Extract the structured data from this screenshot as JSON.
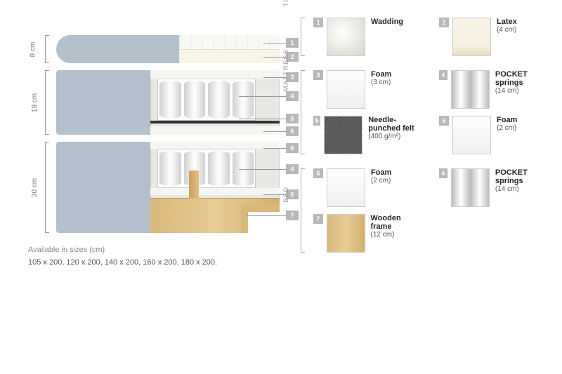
{
  "footer": {
    "title": "Available in sizes (cm)",
    "sizes": "105 x 200, 120 x 200, 140 x 200, 160 x 200, 180 x 200."
  },
  "sections": {
    "top": {
      "height_cm": "8 cm",
      "pointers": [
        "1",
        "2"
      ]
    },
    "mid": {
      "height_cm": "19 cm",
      "pointers": [
        "3",
        "4",
        "5",
        "6"
      ]
    },
    "base": {
      "height_cm": "30 cm",
      "pointers": [
        "6",
        "4",
        "6",
        "7"
      ]
    }
  },
  "legend": {
    "groups": [
      {
        "label": "TOP MATTRESS",
        "rows": [
          [
            {
              "num": "1",
              "name": "Wadding",
              "detail": "",
              "swatch": "sw-wadding"
            },
            {
              "num": "2",
              "name": "Latex",
              "detail": "(4 cm)",
              "swatch": "sw-latex"
            }
          ]
        ]
      },
      {
        "label": "MATTRESS",
        "rows": [
          [
            {
              "num": "3",
              "name": "Foam",
              "detail": "(3 cm)",
              "swatch": "sw-foam"
            },
            {
              "num": "4",
              "name": "POCKET springs",
              "detail": "(14 cm)",
              "swatch": "sw-pocket"
            }
          ],
          [
            {
              "num": "5",
              "name": "Needle-punched felt",
              "detail": "(400 g/m²)",
              "swatch": "sw-felt"
            },
            {
              "num": "6",
              "name": "Foam",
              "detail": "(2 cm)",
              "swatch": "sw-foam"
            }
          ]
        ]
      },
      {
        "label": "BED",
        "rows": [
          [
            {
              "num": "6",
              "name": "Foam",
              "detail": "(2 cm)",
              "swatch": "sw-foam"
            },
            {
              "num": "4",
              "name": "POCKET springs",
              "detail": "(14 cm)",
              "swatch": "sw-pocket"
            }
          ],
          [
            {
              "num": "7",
              "name": "Wooden frame",
              "detail": "(12 cm)",
              "swatch": "sw-wood"
            }
          ]
        ]
      }
    ]
  },
  "styling": {
    "badge_bg": "#b8b8b8",
    "badge_fg": "#ffffff",
    "cover_color": "#b4c1cc",
    "wood_color": "#d9b87a",
    "felt_color": "#323232"
  }
}
